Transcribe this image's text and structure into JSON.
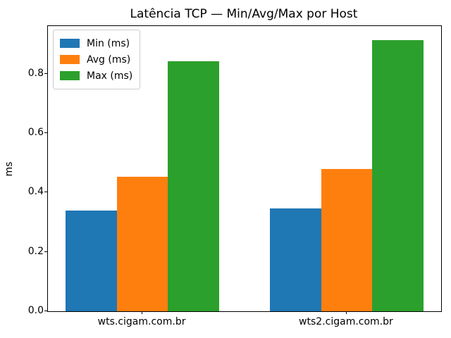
{
  "chart_data": {
    "type": "bar",
    "title": "Latência TCP — Min/Avg/Max por Host",
    "xlabel": "",
    "ylabel": "ms",
    "categories": [
      "wts.cigam.com.br",
      "wts2.cigam.com.br"
    ],
    "series": [
      {
        "name": "Min (ms)",
        "color": "#1f77b4",
        "values": [
          0.34,
          0.345
        ]
      },
      {
        "name": "Avg (ms)",
        "color": "#ff7f0e",
        "values": [
          0.453,
          0.48
        ]
      },
      {
        "name": "Max (ms)",
        "color": "#2ca02c",
        "values": [
          0.841,
          0.912
        ]
      }
    ],
    "ylim": [
      0,
      0.96
    ],
    "yticks": [
      0.0,
      0.2,
      0.4,
      0.6,
      0.8
    ],
    "ytick_labels": [
      "0.0",
      "0.2",
      "0.4",
      "0.6",
      "0.8"
    ],
    "legend_position": "upper left",
    "grid": false
  }
}
